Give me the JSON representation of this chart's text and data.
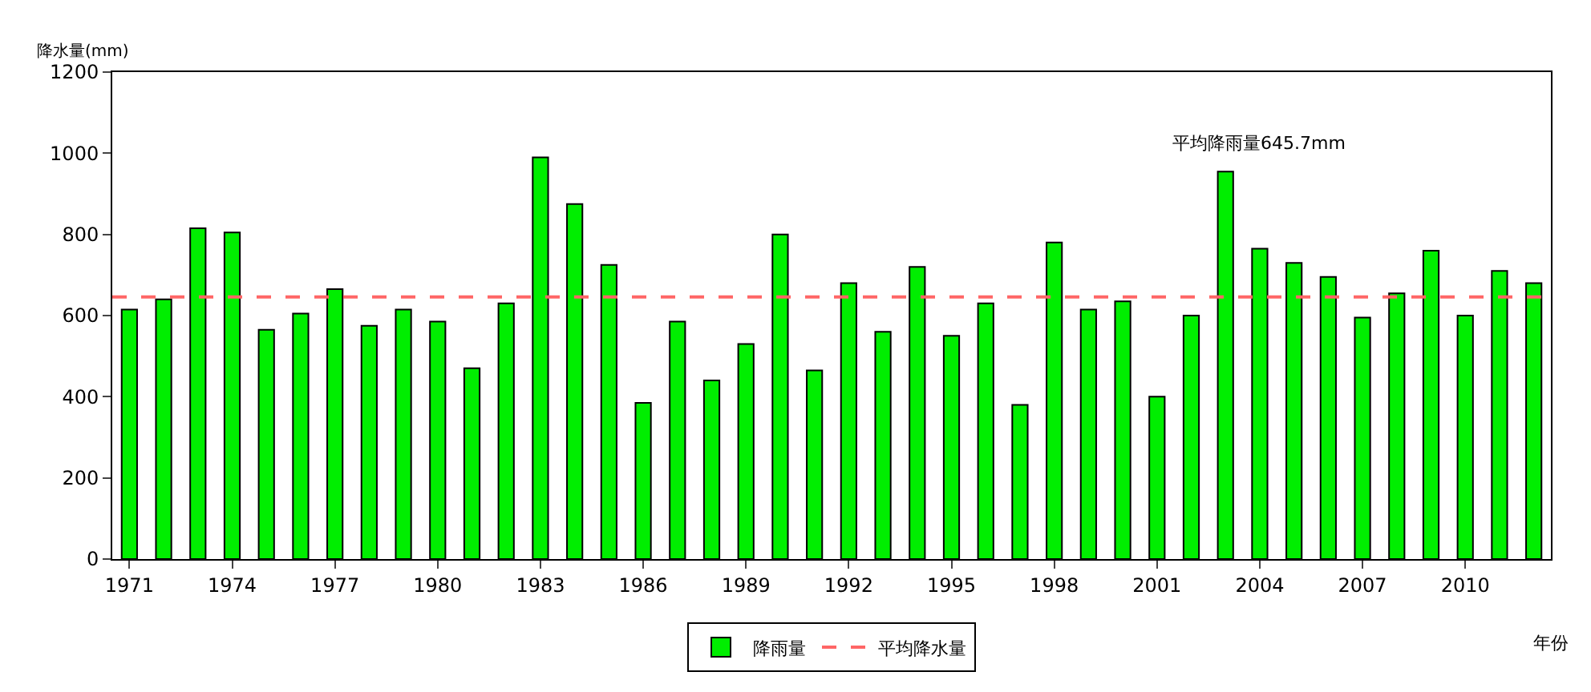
{
  "chart_data": {
    "type": "bar",
    "ylabel": "降水量(mm)",
    "xlabel": "年份",
    "categories": [
      "1971",
      null,
      null,
      "1974",
      null,
      null,
      "1977",
      null,
      null,
      "1980",
      null,
      null,
      "1983",
      null,
      null,
      "1986",
      null,
      null,
      "1989",
      null,
      null,
      "1992",
      null,
      null,
      "1995",
      null,
      null,
      "1998",
      null,
      null,
      "2001",
      null,
      null,
      "2004",
      null,
      null,
      "2007",
      null,
      null,
      "2010",
      null,
      null
    ],
    "series": [
      {
        "name": "降雨量",
        "color": "#00ee00",
        "values": [
          615,
          640,
          815,
          805,
          565,
          605,
          665,
          575,
          615,
          585,
          470,
          630,
          990,
          875,
          725,
          385,
          585,
          440,
          530,
          800,
          465,
          680,
          560,
          720,
          550,
          630,
          380,
          780,
          615,
          635,
          400,
          600,
          955,
          765,
          730,
          695,
          595,
          655,
          760,
          600,
          710,
          680
        ]
      }
    ],
    "ref_lines": [
      {
        "axis": "y",
        "value": 645.7,
        "label": "平均降水量",
        "color": "#ff6666",
        "line_style": "dashed"
      }
    ],
    "annotations": [
      "平均降雨量645.7mm"
    ],
    "ylim": [
      0,
      1200
    ],
    "yticks": [
      0,
      200,
      400,
      600,
      800,
      1000,
      1200
    ],
    "legend": "bottom"
  }
}
